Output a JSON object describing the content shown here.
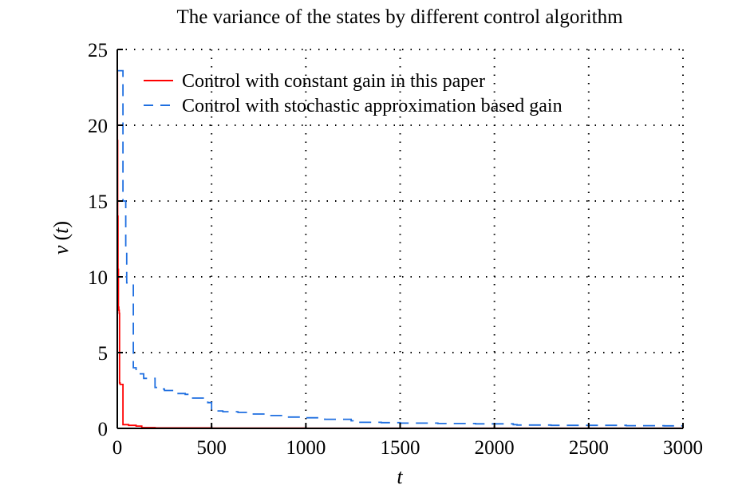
{
  "chart_data": {
    "type": "line",
    "title": "The variance of the states by different control algorithm",
    "xlabel": "t",
    "ylabel_main": "v",
    "ylabel_paren": "(t)",
    "xlim": [
      0,
      3000
    ],
    "ylim": [
      0,
      25
    ],
    "xticks": [
      0,
      500,
      1000,
      1500,
      2000,
      2500,
      3000
    ],
    "yticks": [
      0,
      5,
      10,
      15,
      20,
      25
    ],
    "grid": true,
    "legend_position": "top-left",
    "series": [
      {
        "name": "Control with constant gain in this paper",
        "color": "#ff0000",
        "style": "solid",
        "x": [
          0,
          1,
          2,
          4,
          6,
          8,
          10,
          12,
          15,
          20,
          25,
          30,
          60,
          100,
          130,
          200,
          500,
          1000,
          2000,
          3000
        ],
        "y": [
          23.5,
          19,
          14,
          10.5,
          8,
          7.8,
          7.6,
          3.0,
          2.9,
          2.9,
          2.9,
          0.25,
          0.2,
          0.15,
          0.05,
          0.03,
          0.02,
          0.01,
          0.01,
          0.01
        ]
      },
      {
        "name": "Control with stochastic approximation based gain",
        "color": "#1f6fe0",
        "style": "dashed",
        "x": [
          0,
          10,
          20,
          30,
          45,
          50,
          75,
          85,
          100,
          140,
          200,
          220,
          250,
          300,
          360,
          400,
          480,
          500,
          560,
          640,
          700,
          800,
          900,
          1000,
          1100,
          1240,
          1250,
          1400,
          1500,
          1700,
          1900,
          2100,
          2120,
          2300,
          2500,
          2700,
          2900,
          3000
        ],
        "y": [
          23.6,
          23.6,
          23.6,
          15.0,
          12.0,
          9.6,
          9.6,
          4.0,
          3.6,
          3.3,
          2.7,
          2.6,
          2.5,
          2.3,
          2.25,
          2.0,
          1.7,
          1.15,
          1.1,
          1.05,
          0.95,
          0.85,
          0.75,
          0.7,
          0.6,
          0.5,
          0.4,
          0.38,
          0.35,
          0.32,
          0.3,
          0.25,
          0.22,
          0.2,
          0.2,
          0.18,
          0.17,
          0.17
        ]
      }
    ]
  }
}
